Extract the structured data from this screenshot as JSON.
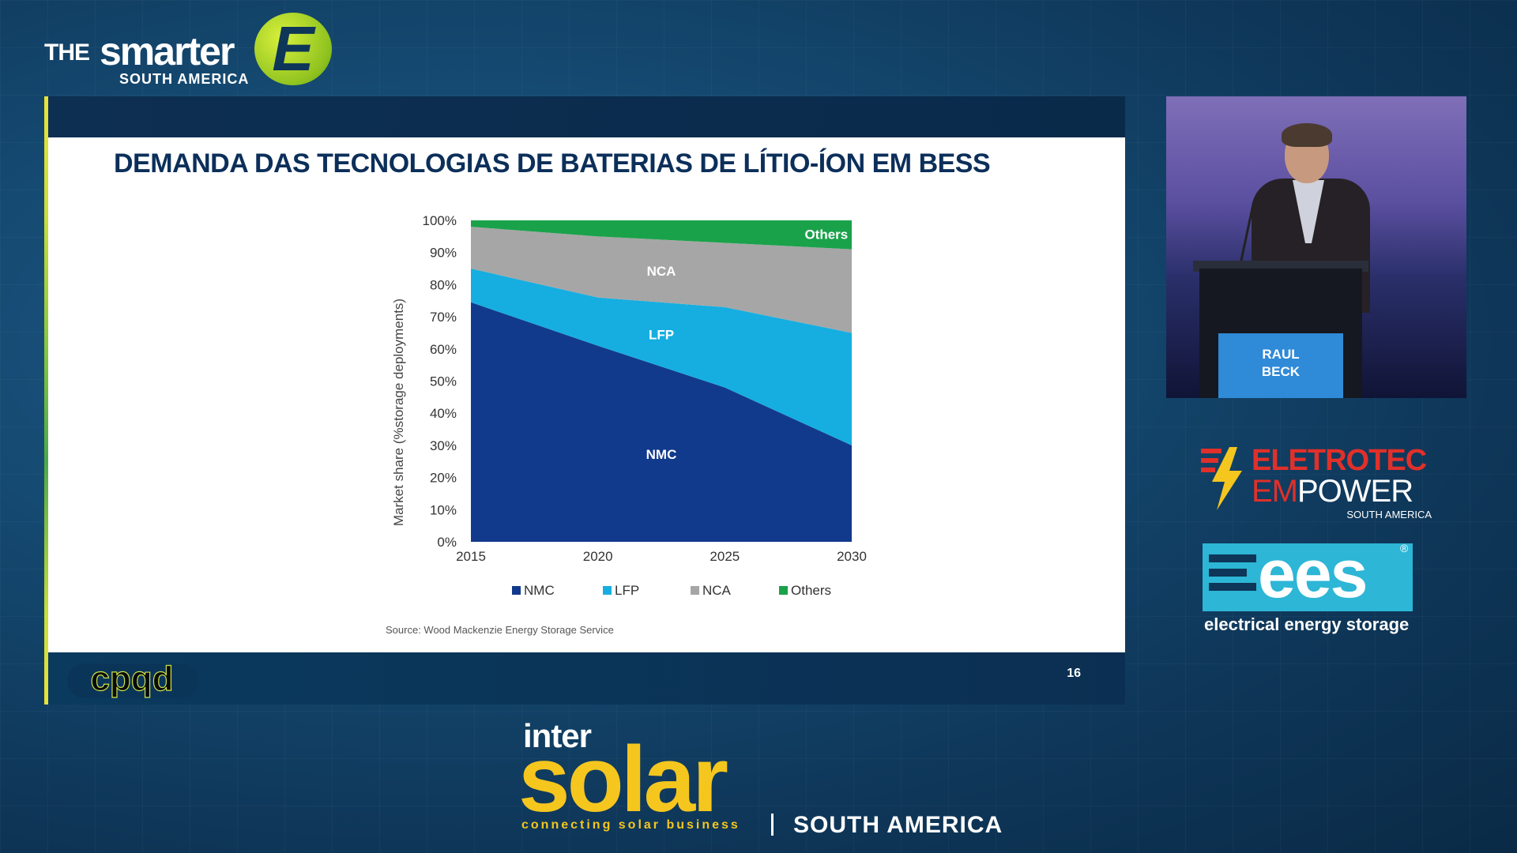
{
  "brand": {
    "the": "THE",
    "smarter": "smarter",
    "region": "SOUTH AMERICA",
    "badge_letter": "E"
  },
  "slide": {
    "title": "DEMANDA DAS TECNOLOGIAS DE BATERIAS DE LÍTIO-ÍON EM BESS",
    "page_number": "16",
    "source": "Source: Wood Mackenzie Energy Storage Service",
    "bottom_logo_text": "cpqd"
  },
  "chart_data": {
    "type": "area",
    "stacked": true,
    "x": [
      2015,
      2020,
      2025,
      2030
    ],
    "xticks": [
      "2015",
      "2020",
      "2025",
      "2030"
    ],
    "ylabel": "Market share (%storage deployments)",
    "yticks": [
      "0%",
      "10%",
      "20%",
      "30%",
      "40%",
      "50%",
      "60%",
      "70%",
      "80%",
      "90%",
      "100%"
    ],
    "ylim": [
      0,
      100
    ],
    "series": [
      {
        "name": "NMC",
        "values": [
          74.5,
          61,
          48,
          30
        ],
        "color": "#123a8c"
      },
      {
        "name": "LFP",
        "values": [
          10.5,
          15,
          25,
          35
        ],
        "color": "#16aee0"
      },
      {
        "name": "NCA",
        "values": [
          13,
          19,
          20,
          26
        ],
        "color": "#a6a6a6"
      },
      {
        "name": "Others",
        "values": [
          2,
          5,
          7,
          9
        ],
        "color": "#1aa24a"
      }
    ],
    "area_labels": [
      "NMC",
      "LFP",
      "NCA",
      "Others"
    ],
    "legend": [
      "NMC",
      "LFP",
      "NCA",
      "Others"
    ],
    "legend_position": "bottom",
    "grid": false
  },
  "speaker": {
    "name_line1": "RAUL",
    "name_line2": "BECK"
  },
  "sponsors": {
    "eletrotec_line1": "ELETROTEC",
    "eletrotec_em": "EM",
    "eletrotec_power": "POWER",
    "eletrotec_region": "SOUTH AMERICA",
    "ees_mark": "ees",
    "ees_reg": "®",
    "ees_tagline": "electrical energy storage"
  },
  "intersolar": {
    "inter": "inter",
    "solar": "solar",
    "tagline": "connecting solar business",
    "region": "SOUTH AMERICA"
  }
}
